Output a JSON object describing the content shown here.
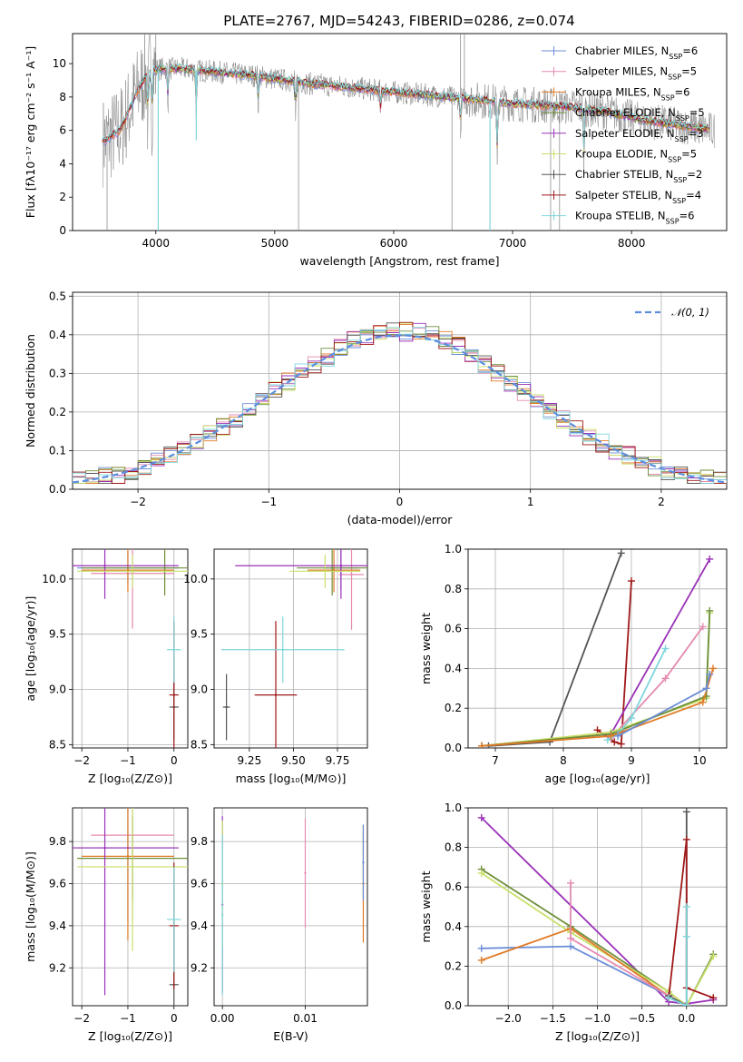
{
  "title": "PLATE=2767, MJD=54243, FIBERID=0286, z=0.074",
  "colors": {
    "Chabrier MILES": "#6b8ed6",
    "Salpeter MILES": "#e48ab0",
    "Kroupa MILES": "#e07b27",
    "Chabrier ELODIE": "#6e8f3b",
    "Salpeter ELODIE": "#9a32b8",
    "Kroupa ELODIE": "#c8e06a",
    "Chabrier STELIB": "#555555",
    "Salpeter STELIB": "#a01818",
    "Kroupa STELIB": "#7fd6dc",
    "data": "#808080",
    "normal": "#5b8ee0",
    "grid": "#b0b0b0"
  },
  "chart_data": [
    {
      "panel": "spectrum",
      "type": "line",
      "xlabel": "wavelength [Angstrom, rest frame]",
      "ylabel": "Flux [fλ10⁻¹⁷ erg cm⁻² s⁻¹ A⁻¹]",
      "xlim": [
        3300,
        8800
      ],
      "ylim": [
        0,
        11.8
      ],
      "xticks": [
        "4000",
        "5000",
        "6000",
        "7000",
        "8000"
      ],
      "yticks": [
        "0",
        "2",
        "4",
        "6",
        "8",
        "10"
      ],
      "legend_position": "top-right",
      "legend": [
        "Chabrier MILES, N_SSP=6",
        "Salpeter MILES, N_SSP=5",
        "Kroupa MILES, N_SSP=6",
        "Chabrier ELODIE, N_SSP=5",
        "Salpeter ELODIE, N_SSP=3",
        "Kroupa ELODIE, N_SSP=5",
        "Chabrier STELIB, N_SSP=2",
        "Salpeter STELIB, N_SSP=4",
        "Kroupa STELIB, N_SSP=6"
      ],
      "continuum": {
        "x": [
          3550,
          3700,
          3850,
          3950,
          4050,
          4200,
          4500,
          4800,
          5000,
          5300,
          5600,
          6000,
          6300,
          6600,
          7000,
          7300,
          7500,
          7800,
          8100,
          8400,
          8700
        ],
        "y": [
          5.3,
          6.0,
          8.4,
          9.6,
          9.7,
          9.7,
          9.5,
          9.3,
          9.1,
          8.8,
          8.6,
          8.3,
          8.1,
          7.9,
          7.6,
          7.5,
          7.4,
          7.1,
          6.6,
          6.3,
          6.0
        ]
      }
    },
    {
      "panel": "residuals",
      "type": "line",
      "xlabel": "(data-model)/error",
      "ylabel": "Normed distribution",
      "xlim": [
        -2.5,
        2.5
      ],
      "ylim": [
        0,
        0.51
      ],
      "xticks": [
        "−2",
        "−1",
        "0",
        "1",
        "2"
      ],
      "yticks": [
        "0.0",
        "0.1",
        "0.2",
        "0.3",
        "0.4",
        "0.5"
      ],
      "legend": [
        "𝒩(0, 1)"
      ],
      "legend_position": "top-right"
    },
    {
      "panel": "age_vs_Z",
      "type": "scatter",
      "xlabel": "Z [log₁₀(Z/Z⊙)]",
      "ylabel": "age  [log₁₀(age/yr)]",
      "xlim": [
        -2.2,
        0.3
      ],
      "ylim": [
        8.47,
        10.27
      ],
      "xticks": [
        "−2",
        "−1",
        "0"
      ],
      "yticks": [
        "8.5",
        "9.0",
        "9.5",
        "10.0"
      ],
      "points": [
        {
          "model": "Chabrier MILES",
          "x": -1.0,
          "y": 10.1,
          "xerr": 1.1,
          "yerr": 0.15
        },
        {
          "model": "Salpeter MILES",
          "x": -0.9,
          "y": 10.05,
          "xerr": 0.9,
          "yerr": 0.5
        },
        {
          "model": "Kroupa MILES",
          "x": -1.0,
          "y": 10.08,
          "xerr": 1.0,
          "yerr": 0.2
        },
        {
          "model": "Chabrier ELODIE",
          "x": -0.2,
          "y": 10.1,
          "xerr": 1.8,
          "yerr": 0.25
        },
        {
          "model": "Salpeter ELODIE",
          "x": -1.5,
          "y": 10.12,
          "xerr": 1.6,
          "yerr": 0.3
        },
        {
          "model": "Kroupa ELODIE",
          "x": -0.9,
          "y": 10.07,
          "xerr": 1.2,
          "yerr": 0.15
        },
        {
          "model": "Chabrier STELIB",
          "x": 0.0,
          "y": 8.84,
          "xerr": 0.1,
          "yerr": 0.3
        },
        {
          "model": "Salpeter STELIB",
          "x": 0.0,
          "y": 8.95,
          "xerr": 0.1,
          "yerr": 0.67
        },
        {
          "model": "Kroupa STELIB",
          "x": 0.0,
          "y": 9.36,
          "xerr": 0.15,
          "yerr": 0.3
        }
      ]
    },
    {
      "panel": "age_vs_mass",
      "type": "scatter",
      "xlabel": "mass [log₁₀(M/M⊙)]",
      "xlim": [
        9.05,
        9.92
      ],
      "ylim": [
        8.47,
        10.27
      ],
      "xticks": [
        "9.25",
        "9.50",
        "9.75"
      ],
      "yticks": [
        "8.5",
        "9.0",
        "9.5",
        "10.0"
      ],
      "points": [
        {
          "model": "Chabrier MILES",
          "x": 9.77,
          "y": 10.1,
          "xerr": 0.1,
          "yerr": 0.2
        },
        {
          "model": "Salpeter MILES",
          "x": 9.83,
          "y": 10.04,
          "xerr": 0.07,
          "yerr": 0.5
        },
        {
          "model": "Kroupa MILES",
          "x": 9.73,
          "y": 10.08,
          "xerr": 0.15,
          "yerr": 0.2
        },
        {
          "model": "Chabrier ELODIE",
          "x": 9.72,
          "y": 10.1,
          "xerr": 0.2,
          "yerr": 0.25
        },
        {
          "model": "Salpeter ELODIE",
          "x": 9.77,
          "y": 10.12,
          "xerr": 0.6,
          "yerr": 0.3
        },
        {
          "model": "Kroupa ELODIE",
          "x": 9.68,
          "y": 10.07,
          "xerr": 0.2,
          "yerr": 0.15
        },
        {
          "model": "Chabrier STELIB",
          "x": 9.12,
          "y": 8.84,
          "xerr": 0.02,
          "yerr": 0.3
        },
        {
          "model": "Salpeter STELIB",
          "x": 9.4,
          "y": 8.95,
          "xerr": 0.12,
          "yerr": 0.67
        },
        {
          "model": "Kroupa STELIB",
          "x": 9.44,
          "y": 9.36,
          "xerr": 0.35,
          "yerr": 0.3
        }
      ]
    },
    {
      "panel": "weight_vs_age",
      "type": "line",
      "xlabel": "age  [log₁₀(age/yr)]",
      "ylabel": "mass weight",
      "xlim": [
        6.6,
        10.4
      ],
      "ylim": [
        0,
        1
      ],
      "xticks": [
        "7",
        "8",
        "9",
        "10"
      ],
      "yticks": [
        "0.0",
        "0.2",
        "0.4",
        "0.6",
        "0.8",
        "1.0"
      ],
      "series": [
        {
          "model": "Chabrier STELIB",
          "x": [
            6.9,
            7.8,
            8.85
          ],
          "y": [
            0.01,
            0.03,
            0.98
          ]
        },
        {
          "model": "Salpeter STELIB",
          "x": [
            8.5,
            8.75,
            8.85,
            9.0
          ],
          "y": [
            0.09,
            0.03,
            0.02,
            0.84
          ]
        },
        {
          "model": "Salpeter ELODIE",
          "x": [
            6.8,
            8.7,
            10.15
          ],
          "y": [
            0.01,
            0.07,
            0.95
          ]
        },
        {
          "model": "Salpeter MILES",
          "x": [
            8.7,
            9.5,
            10.05
          ],
          "y": [
            0.05,
            0.35,
            0.61
          ]
        },
        {
          "model": "Kroupa ELODIE",
          "x": [
            6.8,
            8.7,
            10.1,
            10.15
          ],
          "y": [
            0.01,
            0.08,
            0.25,
            0.68
          ]
        },
        {
          "model": "Chabrier ELODIE",
          "x": [
            6.8,
            8.7,
            10.1,
            10.15
          ],
          "y": [
            0.01,
            0.07,
            0.26,
            0.69
          ]
        },
        {
          "model": "Kroupa STELIB",
          "x": [
            8.65,
            8.8,
            9.0,
            9.5
          ],
          "y": [
            0.04,
            0.07,
            0.15,
            0.5
          ]
        },
        {
          "model": "Kroupa MILES",
          "x": [
            6.8,
            8.7,
            10.05,
            10.2
          ],
          "y": [
            0.01,
            0.06,
            0.23,
            0.4
          ]
        },
        {
          "model": "Chabrier MILES",
          "x": [
            8.8,
            10.1,
            10.15
          ],
          "y": [
            0.06,
            0.3,
            0.37
          ]
        }
      ]
    },
    {
      "panel": "mass_vs_Z",
      "type": "scatter",
      "xlabel": "Z [log₁₀(Z/Z⊙)]",
      "ylabel": "mass [log₁₀(M/M⊙)]",
      "xlim": [
        -2.2,
        0.3
      ],
      "ylim": [
        9.02,
        9.96
      ],
      "xticks": [
        "−2",
        "−1",
        "0"
      ],
      "yticks": [
        "9.2",
        "9.4",
        "9.6",
        "9.8"
      ],
      "points": [
        {
          "model": "Chabrier MILES",
          "x": -1.0,
          "y": 9.77,
          "xerr": 1.1,
          "yerr": 0.35
        },
        {
          "model": "Salpeter MILES",
          "x": -0.9,
          "y": 9.83,
          "xerr": 0.9,
          "yerr": 0.4
        },
        {
          "model": "Kroupa MILES",
          "x": -1.0,
          "y": 9.73,
          "xerr": 1.0,
          "yerr": 0.4
        },
        {
          "model": "Chabrier ELODIE",
          "x": -0.9,
          "y": 9.72,
          "xerr": 1.2,
          "yerr": 0.2
        },
        {
          "model": "Salpeter ELODIE",
          "x": -1.5,
          "y": 9.77,
          "xerr": 1.6,
          "yerr": 0.7
        },
        {
          "model": "Kroupa ELODIE",
          "x": -0.9,
          "y": 9.68,
          "xerr": 1.2,
          "yerr": 0.4
        },
        {
          "model": "Chabrier STELIB",
          "x": 0.0,
          "y": 9.12,
          "xerr": 0.1,
          "yerr": 0.3
        },
        {
          "model": "Salpeter STELIB",
          "x": 0.0,
          "y": 9.4,
          "xerr": 0.1,
          "yerr": 0.3
        },
        {
          "model": "Kroupa STELIB",
          "x": 0.0,
          "y": 9.43,
          "xerr": 0.15,
          "yerr": 0.25
        }
      ]
    },
    {
      "panel": "mass_vs_EBV",
      "type": "scatter",
      "xlabel": "E(B-V)",
      "xlim": [
        -0.001,
        0.0175
      ],
      "ylim": [
        9.02,
        9.96
      ],
      "xticks": [
        "0.00",
        "0.01"
      ],
      "yticks": [
        "9.2",
        "9.4",
        "9.6",
        "9.8"
      ],
      "points": [
        {
          "model": "Salpeter ELODIE",
          "x": 0.0,
          "y": 9.5,
          "yerr": 0.42
        },
        {
          "model": "Kroupa ELODIE",
          "x": 0.0,
          "y": 9.6,
          "yerr": 0.3
        },
        {
          "model": "Kroupa STELIB",
          "x": 0.0,
          "y": 9.45,
          "yerr": 0.38
        },
        {
          "model": "Salpeter MILES",
          "x": 0.01,
          "y": 9.65,
          "yerr": 0.26
        },
        {
          "model": "Kroupa MILES",
          "x": 0.017,
          "y": 9.6,
          "yerr": 0.28
        },
        {
          "model": "Chabrier MILES",
          "x": 0.017,
          "y": 9.7,
          "yerr": 0.18
        }
      ]
    },
    {
      "panel": "weight_vs_Z",
      "type": "line",
      "xlabel": "Z [log₁₀(Z/Z⊙)]",
      "ylabel": "mass weight",
      "xlim": [
        -2.45,
        0.45
      ],
      "ylim": [
        0,
        1
      ],
      "xticks": [
        "−2.0",
        "−1.5",
        "−1.0",
        "−0.5",
        "0.0"
      ],
      "yticks": [
        "0.0",
        "0.2",
        "0.4",
        "0.6",
        "0.8",
        "1.0"
      ],
      "series": [
        {
          "model": "Salpeter ELODIE",
          "x": [
            -2.3,
            -0.2,
            0.0,
            0.3
          ],
          "y": [
            0.95,
            0.02,
            0.01,
            0.03
          ]
        },
        {
          "model": "Chabrier ELODIE",
          "x": [
            -2.3,
            -1.3,
            -0.2,
            0.0,
            0.3
          ],
          "y": [
            0.69,
            0.4,
            0.07,
            0.0,
            0.26
          ]
        },
        {
          "model": "Kroupa ELODIE",
          "x": [
            -2.3,
            -1.3,
            -0.2,
            0.0,
            0.3
          ],
          "y": [
            0.67,
            0.37,
            0.07,
            0.0,
            0.25
          ]
        },
        {
          "model": "Chabrier MILES",
          "x": [
            -2.3,
            -1.3,
            -0.2
          ],
          "y": [
            0.29,
            0.3,
            0.05
          ]
        },
        {
          "model": "Kroupa MILES",
          "x": [
            -2.3,
            -1.3,
            -0.2,
            0.0
          ],
          "y": [
            0.23,
            0.39,
            0.05,
            0.0
          ]
        },
        {
          "model": "Salpeter MILES",
          "x": [
            -1.3,
            -1.3,
            -0.2,
            0.0
          ],
          "y": [
            0.62,
            0.34,
            0.05,
            0.0
          ]
        },
        {
          "model": "Chabrier STELIB",
          "x": [
            -0.2,
            0.0,
            0.0
          ],
          "y": [
            0.05,
            0.0,
            0.98
          ]
        },
        {
          "model": "Salpeter STELIB",
          "x": [
            -0.2,
            0.0,
            0.0,
            0.3
          ],
          "y": [
            0.04,
            0.84,
            0.09,
            0.04
          ]
        },
        {
          "model": "Kroupa STELIB",
          "x": [
            -0.2,
            0.0,
            0.0,
            0.0
          ],
          "y": [
            0.04,
            0.0,
            0.5,
            0.35
          ]
        }
      ]
    }
  ]
}
